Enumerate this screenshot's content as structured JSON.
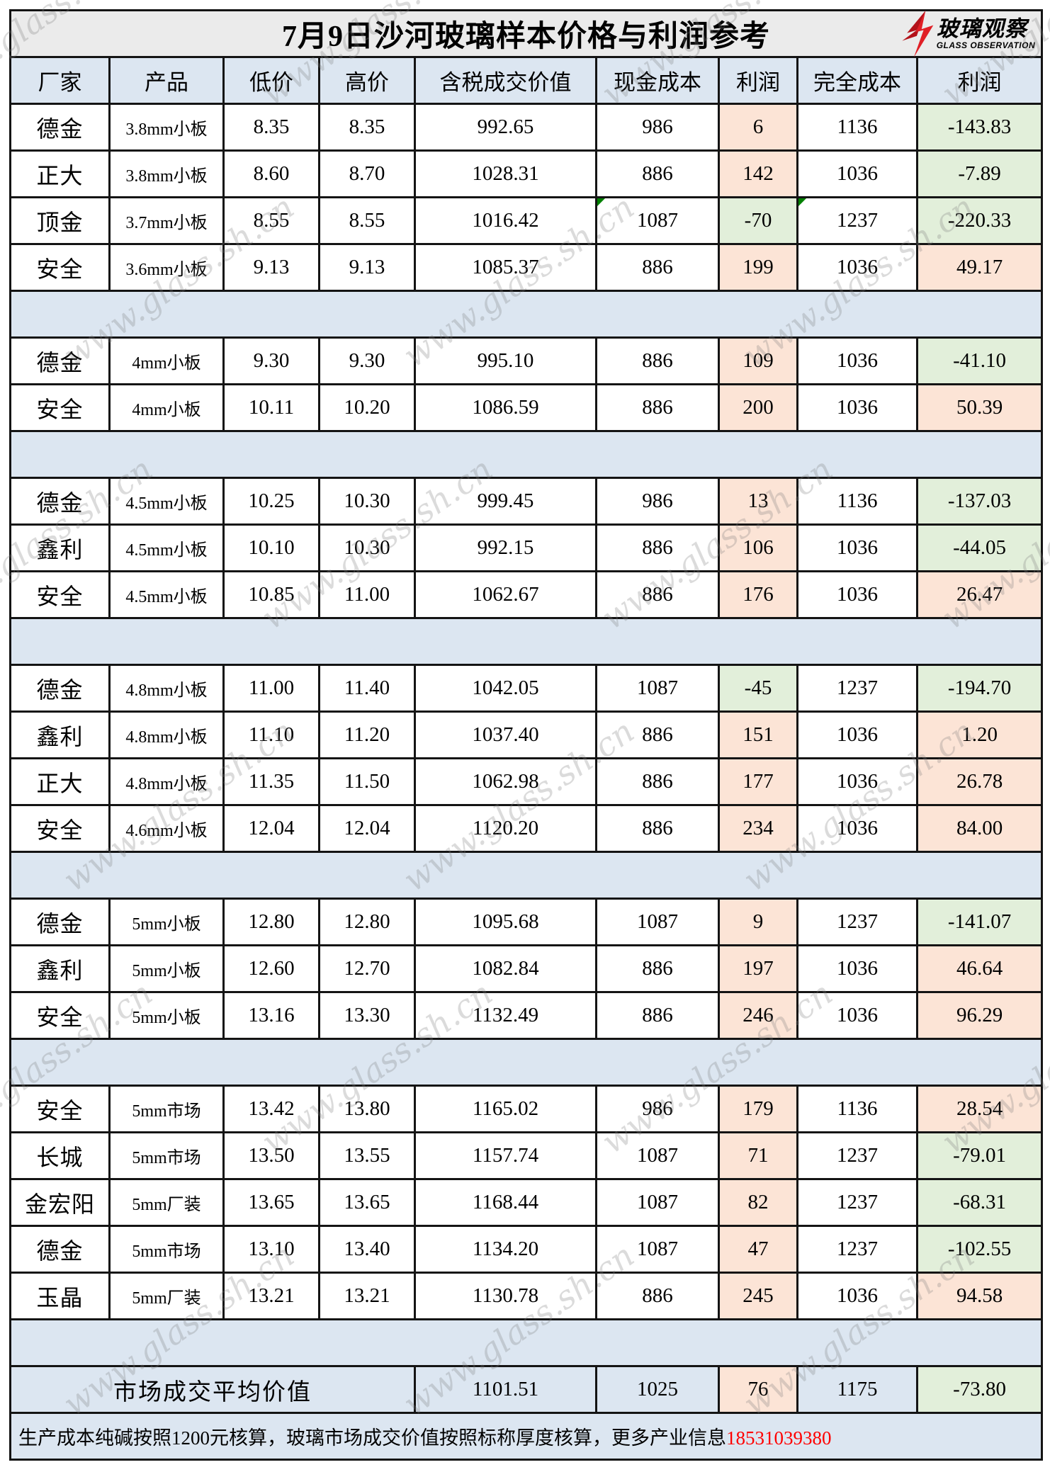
{
  "title": "7月9日沙河玻璃样本价格与利润参考",
  "logo": {
    "cn": "玻璃观察",
    "en": "GLASS OBSERVATION"
  },
  "watermark": {
    "text": "www.glass.sh.cn"
  },
  "colors": {
    "title_bg": "#ebebeb",
    "band_blue": "#dce6f1",
    "profit_positive_bg": "#fce4d6",
    "profit_negative_bg": "#e2efda",
    "phone_red": "#ff0000",
    "logo_red": "#e01f26",
    "error_marker_green": "#008000"
  },
  "table": {
    "headers": [
      "厂家",
      "产品",
      "低价",
      "高价",
      "含税成交价值",
      "现金成本",
      "利润",
      "完全成本",
      "利润"
    ],
    "rows": [
      {
        "type": "data",
        "factory": "德金",
        "product": "3.8mm小板",
        "low": "8.35",
        "high": "8.35",
        "value": "992.65",
        "cash_cost": "986",
        "profit_cash": "6",
        "full_cost": "1136",
        "profit_full": "-143.83"
      },
      {
        "type": "data",
        "factory": "正大",
        "product": "3.8mm小板",
        "low": "8.60",
        "high": "8.70",
        "value": "1028.31",
        "cash_cost": "886",
        "profit_cash": "142",
        "full_cost": "1036",
        "profit_full": "-7.89"
      },
      {
        "type": "data",
        "factory": "顶金",
        "product": "3.7mm小板",
        "low": "8.55",
        "high": "8.55",
        "value": "1016.42",
        "cash_cost": "1087",
        "profit_cash": "-70",
        "full_cost": "1237",
        "profit_full": "-220.33",
        "markers": [
          "cash_cost",
          "full_cost"
        ]
      },
      {
        "type": "data",
        "factory": "安全",
        "product": "3.6mm小板",
        "low": "9.13",
        "high": "9.13",
        "value": "1085.37",
        "cash_cost": "886",
        "profit_cash": "199",
        "full_cost": "1036",
        "profit_full": "49.17"
      },
      {
        "type": "separator"
      },
      {
        "type": "data",
        "factory": "德金",
        "product": "4mm小板",
        "low": "9.30",
        "high": "9.30",
        "value": "995.10",
        "cash_cost": "886",
        "profit_cash": "109",
        "full_cost": "1036",
        "profit_full": "-41.10"
      },
      {
        "type": "data",
        "factory": "安全",
        "product": "4mm小板",
        "low": "10.11",
        "high": "10.20",
        "value": "1086.59",
        "cash_cost": "886",
        "profit_cash": "200",
        "full_cost": "1036",
        "profit_full": "50.39"
      },
      {
        "type": "separator"
      },
      {
        "type": "data",
        "factory": "德金",
        "product": "4.5mm小板",
        "low": "10.25",
        "high": "10.30",
        "value": "999.45",
        "cash_cost": "986",
        "profit_cash": "13",
        "full_cost": "1136",
        "profit_full": "-137.03"
      },
      {
        "type": "data",
        "factory": "鑫利",
        "product": "4.5mm小板",
        "low": "10.10",
        "high": "10.30",
        "value": "992.15",
        "cash_cost": "886",
        "profit_cash": "106",
        "full_cost": "1036",
        "profit_full": "-44.05"
      },
      {
        "type": "data",
        "factory": "安全",
        "product": "4.5mm小板",
        "low": "10.85",
        "high": "11.00",
        "value": "1062.67",
        "cash_cost": "886",
        "profit_cash": "176",
        "full_cost": "1036",
        "profit_full": "26.47"
      },
      {
        "type": "separator"
      },
      {
        "type": "data",
        "factory": "德金",
        "product": "4.8mm小板",
        "low": "11.00",
        "high": "11.40",
        "value": "1042.05",
        "cash_cost": "1087",
        "profit_cash": "-45",
        "full_cost": "1237",
        "profit_full": "-194.70"
      },
      {
        "type": "data",
        "factory": "鑫利",
        "product": "4.8mm小板",
        "low": "11.10",
        "high": "11.20",
        "value": "1037.40",
        "cash_cost": "886",
        "profit_cash": "151",
        "full_cost": "1036",
        "profit_full": "1.20"
      },
      {
        "type": "data",
        "factory": "正大",
        "product": "4.8mm小板",
        "low": "11.35",
        "high": "11.50",
        "value": "1062.98",
        "cash_cost": "886",
        "profit_cash": "177",
        "full_cost": "1036",
        "profit_full": "26.78"
      },
      {
        "type": "data",
        "factory": "安全",
        "product": "4.6mm小板",
        "low": "12.04",
        "high": "12.04",
        "value": "1120.20",
        "cash_cost": "886",
        "profit_cash": "234",
        "full_cost": "1036",
        "profit_full": "84.00"
      },
      {
        "type": "separator"
      },
      {
        "type": "data",
        "factory": "德金",
        "product": "5mm小板",
        "low": "12.80",
        "high": "12.80",
        "value": "1095.68",
        "cash_cost": "1087",
        "profit_cash": "9",
        "full_cost": "1237",
        "profit_full": "-141.07"
      },
      {
        "type": "data",
        "factory": "鑫利",
        "product": "5mm小板",
        "low": "12.60",
        "high": "12.70",
        "value": "1082.84",
        "cash_cost": "886",
        "profit_cash": "197",
        "full_cost": "1036",
        "profit_full": "46.64"
      },
      {
        "type": "data",
        "factory": "安全",
        "product": "5mm小板",
        "low": "13.16",
        "high": "13.30",
        "value": "1132.49",
        "cash_cost": "886",
        "profit_cash": "246",
        "full_cost": "1036",
        "profit_full": "96.29"
      },
      {
        "type": "separator"
      },
      {
        "type": "data",
        "factory": "安全",
        "product": "5mm市场",
        "low": "13.42",
        "high": "13.80",
        "value": "1165.02",
        "cash_cost": "986",
        "profit_cash": "179",
        "full_cost": "1136",
        "profit_full": "28.54"
      },
      {
        "type": "data",
        "factory": "长城",
        "product": "5mm市场",
        "low": "13.50",
        "high": "13.55",
        "value": "1157.74",
        "cash_cost": "1087",
        "profit_cash": "71",
        "full_cost": "1237",
        "profit_full": "-79.01"
      },
      {
        "type": "data",
        "factory": "金宏阳",
        "product": "5mm厂装",
        "low": "13.65",
        "high": "13.65",
        "value": "1168.44",
        "cash_cost": "1087",
        "profit_cash": "82",
        "full_cost": "1237",
        "profit_full": "-68.31"
      },
      {
        "type": "data",
        "factory": "德金",
        "product": "5mm市场",
        "low": "13.10",
        "high": "13.40",
        "value": "1134.20",
        "cash_cost": "1087",
        "profit_cash": "47",
        "full_cost": "1237",
        "profit_full": "-102.55"
      },
      {
        "type": "data",
        "factory": "玉晶",
        "product": "5mm厂装",
        "low": "13.21",
        "high": "13.21",
        "value": "1130.78",
        "cash_cost": "886",
        "profit_cash": "245",
        "full_cost": "1036",
        "profit_full": "94.58"
      },
      {
        "type": "separator"
      }
    ],
    "summary": {
      "label": "市场成交平均价值",
      "value": "1101.51",
      "cash_cost": "1025",
      "profit_cash": "76",
      "full_cost": "1175",
      "profit_full": "-73.80"
    },
    "footer": {
      "text": "生产成本纯碱按照1200元核算，玻璃市场成交价值按照标称厚度核算，更多产业信息",
      "phone": "18531039380"
    }
  }
}
